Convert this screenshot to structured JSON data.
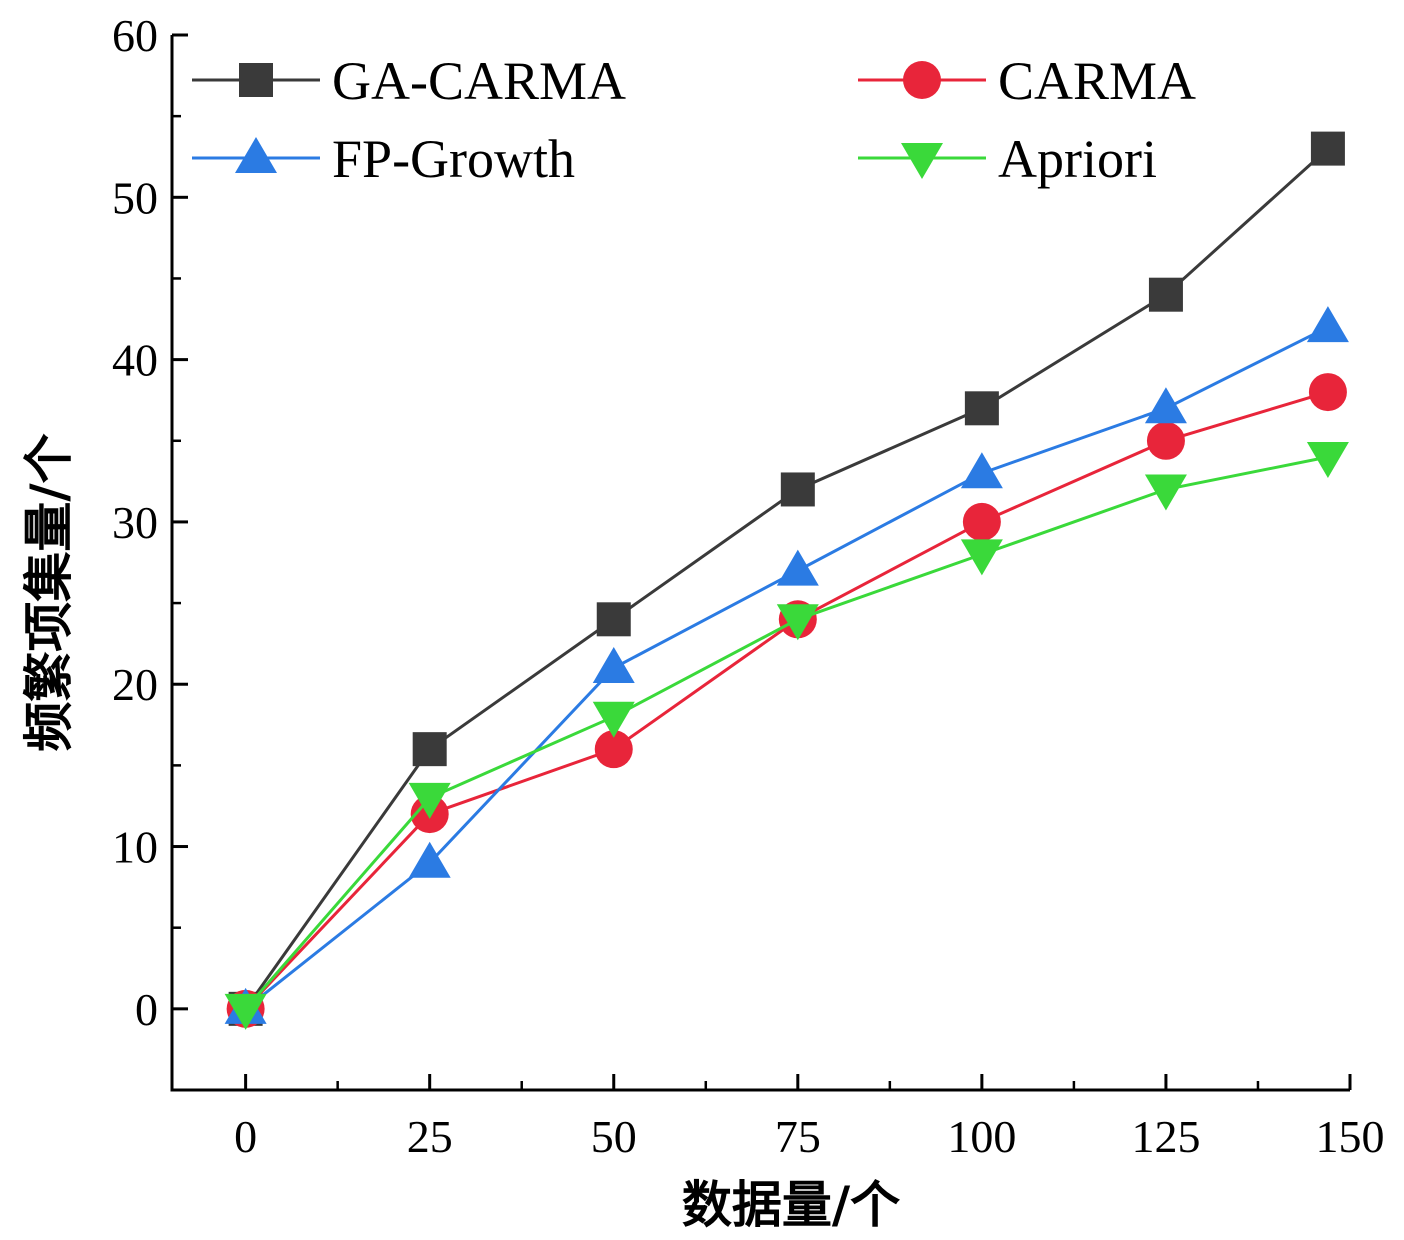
{
  "chart_data": {
    "type": "line",
    "title": "",
    "xlabel": "数据量/个",
    "ylabel": "频繁项集量/个",
    "x": [
      0,
      25,
      50,
      75,
      100,
      125,
      147
    ],
    "x_ticks": [
      0,
      25,
      50,
      75,
      100,
      125,
      150
    ],
    "y_ticks": [
      0,
      10,
      20,
      30,
      40,
      50,
      60
    ],
    "xlim": [
      -10,
      150
    ],
    "ylim": [
      -5,
      60
    ],
    "grid": false,
    "legend_position": "top",
    "series": [
      {
        "name": "GA-CARMA",
        "color": "#3a3a3a",
        "marker": "square",
        "values": [
          0,
          16,
          24,
          32,
          37,
          44,
          53
        ]
      },
      {
        "name": "CARMA",
        "color": "#e8253a",
        "marker": "circle",
        "values": [
          0,
          12,
          16,
          24,
          30,
          35,
          38
        ]
      },
      {
        "name": "FP-Growth",
        "color": "#2b7be3",
        "marker": "triangle-up",
        "values": [
          0,
          9,
          21,
          27,
          33,
          37,
          42
        ]
      },
      {
        "name": "Apriori",
        "color": "#3ad93a",
        "marker": "triangle-down",
        "values": [
          0,
          13,
          18,
          24,
          28,
          32,
          34
        ]
      }
    ]
  }
}
